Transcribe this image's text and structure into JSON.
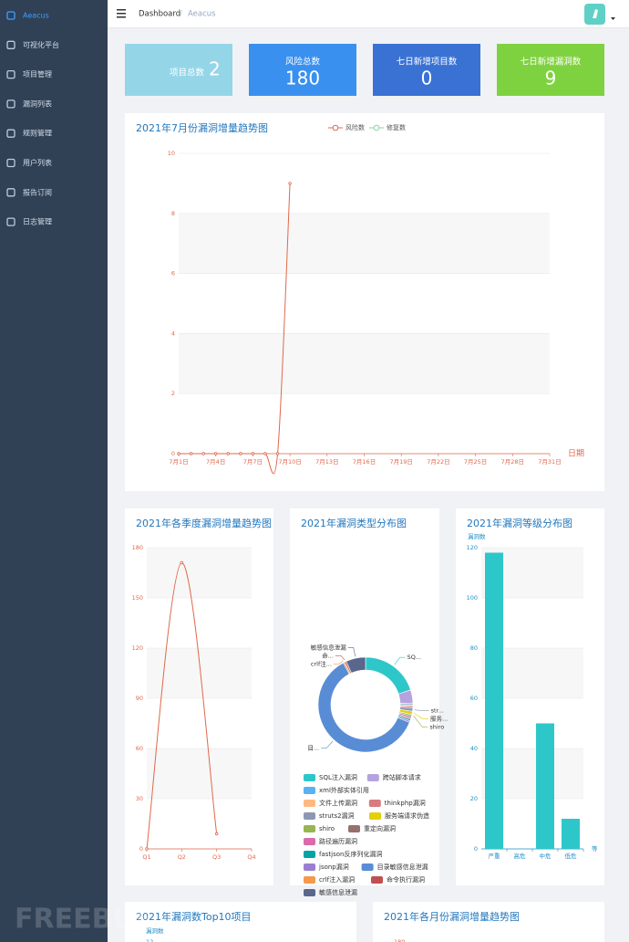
{
  "sidebar": {
    "menu": [
      "Aeacus",
      "可视化平台",
      "项目管理",
      "漏洞列表",
      "规则管理",
      "用户列表",
      "报告订阅",
      "日志管理"
    ]
  },
  "breadcrumb": [
    "Dashboard",
    "/",
    "Aeacus"
  ],
  "stats": [
    {
      "label": "项目总数",
      "value": 2,
      "color": "#94d6e8"
    },
    {
      "label": "风险总数",
      "value": 180,
      "color": "#3a90ee"
    },
    {
      "label": "七日新增项目数",
      "value": 0,
      "color": "#3a72d4"
    },
    {
      "label": "七日新增漏洞数",
      "value": 9,
      "color": "#7fd23f"
    }
  ],
  "chart_data": [
    {
      "type": "line",
      "title": "2021年7月份漏洞增量趋势图",
      "xlabel": "日期",
      "categories": [
        "7月1日",
        null,
        null,
        "7月4日",
        null,
        null,
        "7月7日",
        null,
        null,
        "7月10日",
        null,
        null,
        "7月13日",
        null,
        null,
        "7月16日",
        null,
        null,
        "7月19日",
        null,
        null,
        "7月22日",
        null,
        null,
        "7月25日",
        null,
        null,
        "7月28日",
        null,
        null,
        "7月31日"
      ],
      "series": [
        {
          "name": "风险数",
          "color": "#e0684b",
          "values": [
            0,
            0,
            0,
            0,
            0,
            0,
            0,
            0,
            0,
            9,
            null,
            null,
            null,
            null,
            null,
            null,
            null,
            null,
            null,
            null,
            null,
            null,
            null,
            null,
            null,
            null,
            null,
            null,
            null,
            null,
            null
          ]
        },
        {
          "name": "修复数",
          "color": "#8fd19e",
          "values": [
            null,
            null,
            null,
            null,
            null,
            null,
            null,
            null,
            null,
            null,
            null,
            null,
            null,
            null,
            null,
            null,
            null,
            null,
            null,
            null,
            null,
            null,
            null,
            null,
            null,
            null,
            null,
            null,
            null,
            null,
            null
          ]
        }
      ],
      "ylim": [
        0,
        10
      ],
      "yticks": [
        0,
        2,
        4,
        6,
        8,
        10
      ],
      "grid": true,
      "legend": "top"
    },
    {
      "type": "line",
      "title": "2021年各季度漏洞增量趋势图",
      "categories": [
        "Q1",
        "Q2",
        "Q3",
        "Q4"
      ],
      "values": [
        0,
        171,
        9,
        null
      ],
      "color": "#e0684b",
      "ylim": [
        0,
        180
      ],
      "yticks": [
        0,
        30,
        60,
        90,
        120,
        150,
        180
      ],
      "grid": true
    },
    {
      "type": "pie",
      "title": "2021年漏洞类型分布图",
      "categories": [
        "SQL注入漏洞",
        "跨站脚本请求",
        "xml外部实体引用",
        "文件上传漏洞",
        "thinkphp漏洞",
        "struts2漏洞",
        "服务端请求伪造",
        "shiro",
        "重定向漏洞",
        "路径遍历漏洞",
        "fastjson反序列化漏洞",
        "jsonp漏洞",
        "目录敏感信息泄漏",
        "crlf注入漏洞",
        "命令执行漏洞",
        "敏感信息泄漏"
      ],
      "values": [
        36,
        8,
        1,
        1,
        1,
        2,
        2,
        1,
        1,
        1,
        1,
        1,
        110,
        1,
        1,
        12
      ],
      "slice_labels": [
        "SQ...",
        null,
        null,
        null,
        null,
        "str...",
        "服务...",
        "shiro",
        null,
        null,
        null,
        null,
        "目...",
        "crlf注...",
        "命...",
        "敏感信息泄漏"
      ],
      "colors": [
        "#2ec7c9",
        "#b6a2de",
        "#5ab1ef",
        "#ffb980",
        "#d87a80",
        "#8d98b3",
        "#e5cf0d",
        "#97b552",
        "#95706d",
        "#dc69aa",
        "#07a2a4",
        "#9a7fd1",
        "#588dd5",
        "#f5994e",
        "#c05050",
        "#59678c"
      ],
      "legend": "bottom"
    },
    {
      "type": "bar",
      "title": "2021年漏洞等级分布图",
      "ylabel": "漏洞数",
      "xlabel": "等",
      "categories": [
        "严重",
        "高危",
        "中危",
        "低危"
      ],
      "values": [
        118,
        0,
        50,
        12
      ],
      "color": "#2ec7c9",
      "ylim": [
        0,
        120
      ],
      "yticks": [
        0,
        20,
        40,
        60,
        80,
        100,
        120
      ],
      "grid": true
    },
    {
      "type": "bar",
      "title": "2021年漏洞数Top10项目",
      "ylabel": "漏洞数",
      "yticks": [
        12
      ]
    },
    {
      "type": "line",
      "title": "2021年各月份漏洞增量趋势图",
      "yticks": [
        180
      ]
    }
  ],
  "watermark": "FREEBUF"
}
